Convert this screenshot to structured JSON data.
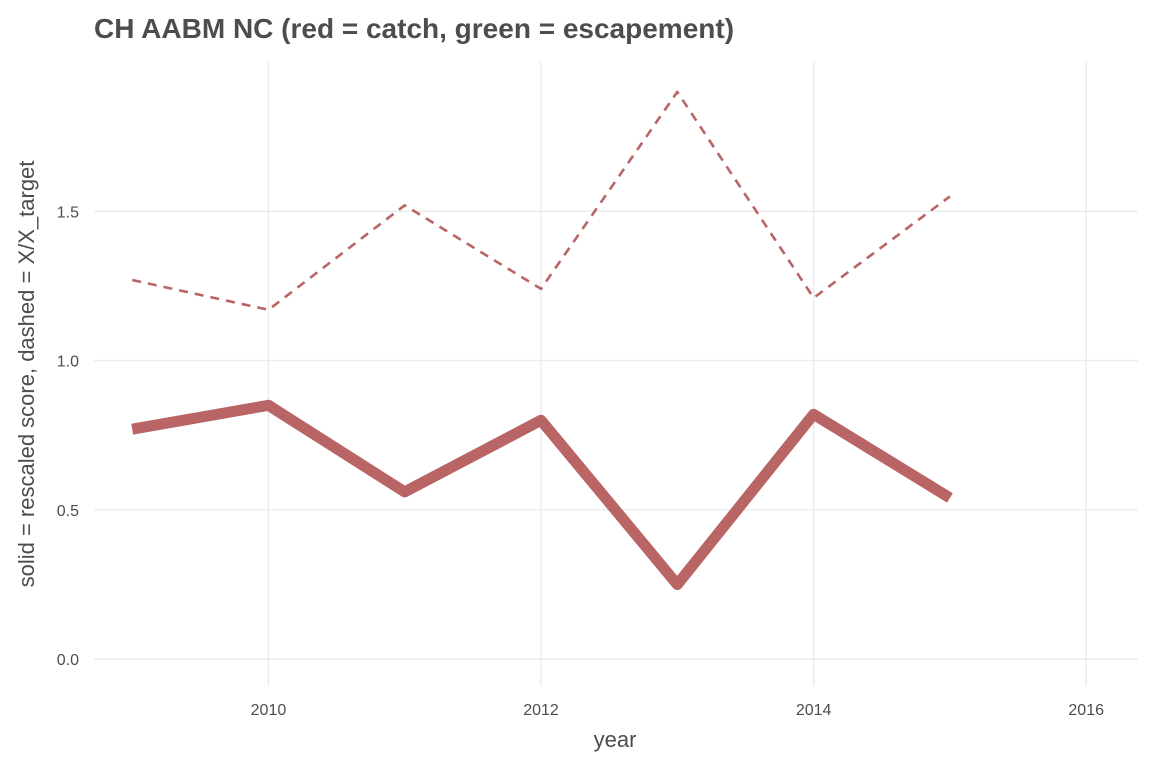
{
  "chart_data": {
    "type": "line",
    "title": "CH AABM NC (red = catch, green = escapement)",
    "xlabel": "year",
    "ylabel": "solid = rescaled score, dashed = X/X_target",
    "xlim": [
      2008.72,
      2016.38
    ],
    "ylim": [
      -0.09,
      2.0
    ],
    "x_ticks": [
      2010,
      2012,
      2014,
      2016
    ],
    "x_tick_labels": [
      "2010",
      "2012",
      "2014",
      "2016"
    ],
    "y_ticks": [
      0.0,
      0.5,
      1.0,
      1.5
    ],
    "y_tick_labels": [
      "0.0",
      "0.5",
      "1.0",
      "1.5"
    ],
    "grid": true,
    "line_color": "#b96465",
    "series": [
      {
        "style": "solid",
        "x": [
          2009,
          2010,
          2011,
          2012,
          2013,
          2014,
          2015
        ],
        "values": [
          0.77,
          0.85,
          0.56,
          0.8,
          0.25,
          0.82,
          0.54
        ]
      },
      {
        "style": "dashed",
        "x": [
          2009,
          2010,
          2011,
          2012,
          2013,
          2014,
          2015
        ],
        "values": [
          1.27,
          1.17,
          1.52,
          1.24,
          1.9,
          1.21,
          1.55
        ]
      }
    ]
  }
}
